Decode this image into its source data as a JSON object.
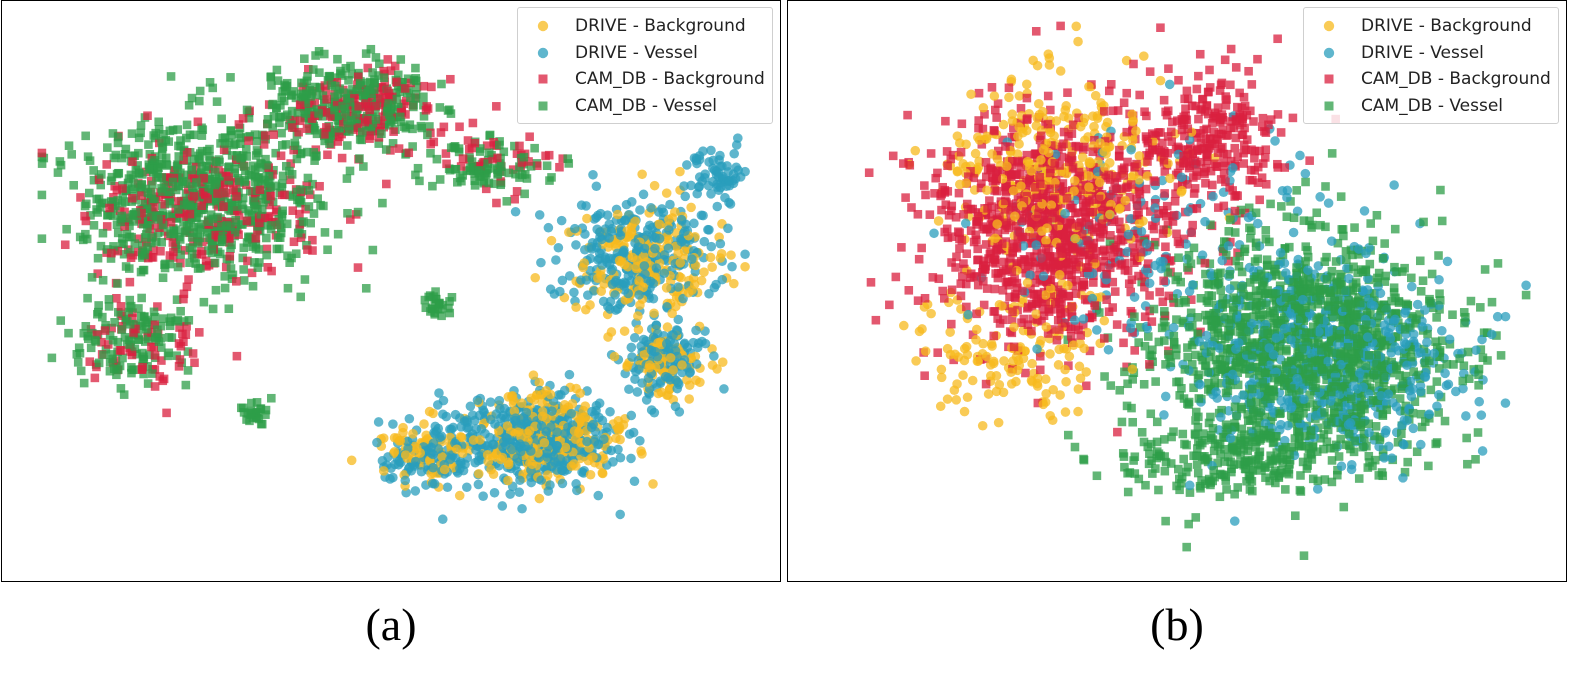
{
  "captions": {
    "a": "(a)",
    "b": "(b)"
  },
  "legend": [
    {
      "label": "DRIVE - Background",
      "color": "#F7B91E",
      "marker": "circle"
    },
    {
      "label": "DRIVE - Vessel",
      "color": "#2A9DBC",
      "marker": "circle"
    },
    {
      "label": "CAM_DB - Background",
      "color": "#D9203F",
      "marker": "square"
    },
    {
      "label": "CAM_DB - Vessel",
      "color": "#2E9E48",
      "marker": "square"
    }
  ],
  "chart_data": [
    {
      "type": "scatter",
      "panel": "(a)",
      "title": "",
      "xlabel": "",
      "ylabel": "",
      "axes_visible": false,
      "grid": false,
      "legend_position": "top-right",
      "point_alpha": 0.75,
      "series": [
        {
          "name": "DRIVE - Background",
          "color": "#F7B91E",
          "marker": "circle",
          "clusters": [
            {
              "center": [
                0.42,
                -0.55
              ],
              "spread": [
                0.2,
                0.16
              ],
              "count": 260
            },
            {
              "center": [
                0.72,
                0.12
              ],
              "spread": [
                0.2,
                0.2
              ],
              "count": 190
            },
            {
              "center": [
                0.78,
                -0.28
              ],
              "spread": [
                0.1,
                0.12
              ],
              "count": 90
            },
            {
              "center": [
                0.08,
                -0.6
              ],
              "spread": [
                0.12,
                0.12
              ],
              "count": 70
            }
          ]
        },
        {
          "name": "DRIVE - Vessel",
          "color": "#2A9DBC",
          "marker": "circle",
          "clusters": [
            {
              "center": [
                0.4,
                -0.55
              ],
              "spread": [
                0.22,
                0.17
              ],
              "count": 420
            },
            {
              "center": [
                0.7,
                0.15
              ],
              "spread": [
                0.22,
                0.2
              ],
              "count": 280
            },
            {
              "center": [
                0.78,
                -0.25
              ],
              "spread": [
                0.1,
                0.14
              ],
              "count": 120
            },
            {
              "center": [
                0.1,
                -0.62
              ],
              "spread": [
                0.13,
                0.12
              ],
              "count": 110
            },
            {
              "center": [
                0.92,
                0.45
              ],
              "spread": [
                0.08,
                0.08
              ],
              "count": 60
            }
          ]
        },
        {
          "name": "CAM_DB - Background",
          "color": "#D9203F",
          "marker": "square",
          "clusters": [
            {
              "center": [
                -0.55,
                0.3
              ],
              "spread": [
                0.3,
                0.25
              ],
              "count": 260
            },
            {
              "center": [
                -0.1,
                0.68
              ],
              "spread": [
                0.22,
                0.15
              ],
              "count": 150
            },
            {
              "center": [
                -0.7,
                -0.2
              ],
              "spread": [
                0.15,
                0.15
              ],
              "count": 60
            },
            {
              "center": [
                0.28,
                0.5
              ],
              "spread": [
                0.15,
                0.1
              ],
              "count": 40
            }
          ]
        },
        {
          "name": "CAM_DB - Vessel",
          "color": "#2E9E48",
          "marker": "square",
          "clusters": [
            {
              "center": [
                -0.55,
                0.35
              ],
              "spread": [
                0.32,
                0.27
              ],
              "count": 700
            },
            {
              "center": [
                -0.12,
                0.7
              ],
              "spread": [
                0.22,
                0.15
              ],
              "count": 300
            },
            {
              "center": [
                -0.75,
                -0.18
              ],
              "spread": [
                0.15,
                0.15
              ],
              "count": 130
            },
            {
              "center": [
                0.28,
                0.48
              ],
              "spread": [
                0.16,
                0.1
              ],
              "count": 90
            },
            {
              "center": [
                0.12,
                -0.05
              ],
              "spread": [
                0.04,
                0.04
              ],
              "count": 25
            },
            {
              "center": [
                -0.4,
                -0.45
              ],
              "spread": [
                0.05,
                0.04
              ],
              "count": 25
            }
          ]
        }
      ]
    },
    {
      "type": "scatter",
      "panel": "(b)",
      "title": "",
      "xlabel": "",
      "ylabel": "",
      "axes_visible": false,
      "grid": false,
      "legend_position": "top-right",
      "point_alpha": 0.75,
      "series": [
        {
          "name": "DRIVE - Background",
          "color": "#F7B91E",
          "marker": "circle",
          "clusters": [
            {
              "center": [
                -0.35,
                0.45
              ],
              "spread": [
                0.3,
                0.3
              ],
              "count": 320
            },
            {
              "center": [
                -0.45,
                -0.2
              ],
              "spread": [
                0.25,
                0.25
              ],
              "count": 150
            }
          ]
        },
        {
          "name": "DRIVE - Vessel",
          "color": "#2A9DBC",
          "marker": "circle",
          "clusters": [
            {
              "center": [
                0.45,
                -0.25
              ],
              "spread": [
                0.35,
                0.32
              ],
              "count": 520
            },
            {
              "center": [
                0.0,
                0.15
              ],
              "spread": [
                0.45,
                0.45
              ],
              "count": 180
            }
          ]
        },
        {
          "name": "CAM_DB - Background",
          "color": "#D9203F",
          "marker": "square",
          "clusters": [
            {
              "center": [
                -0.35,
                0.25
              ],
              "spread": [
                0.32,
                0.42
              ],
              "count": 1000
            },
            {
              "center": [
                0.1,
                0.55
              ],
              "spread": [
                0.2,
                0.25
              ],
              "count": 260
            }
          ]
        },
        {
          "name": "CAM_DB - Vessel",
          "color": "#2E9E48",
          "marker": "square",
          "clusters": [
            {
              "center": [
                0.38,
                -0.2
              ],
              "spread": [
                0.38,
                0.38
              ],
              "count": 1300
            },
            {
              "center": [
                0.15,
                -0.62
              ],
              "spread": [
                0.3,
                0.15
              ],
              "count": 220
            }
          ]
        }
      ]
    }
  ]
}
